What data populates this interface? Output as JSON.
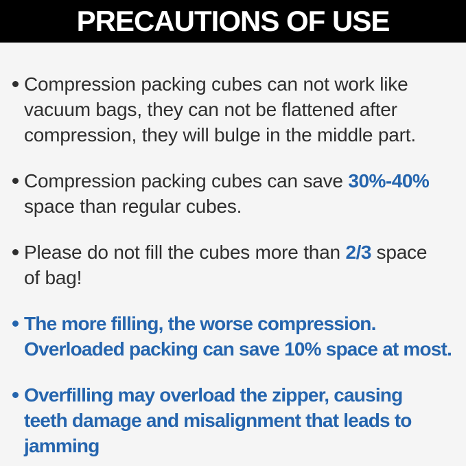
{
  "header": {
    "title": "PRECAUTIONS OF USE"
  },
  "colors": {
    "header_bg": "#000000",
    "header_text": "#ffffff",
    "body_bg": "#f5f5f5",
    "text_dark": "#2e2e2e",
    "accent_blue": "#2565ae"
  },
  "bullets": [
    {
      "style": "dark",
      "lines": [
        {
          "segments": [
            {
              "text": "Compression packing cubes can not work like",
              "highlight": false
            }
          ]
        },
        {
          "segments": [
            {
              "text": "vacuum bags, they can not be flattened after",
              "highlight": false
            }
          ]
        },
        {
          "segments": [
            {
              "text": "compression, they will bulge in the middle part.",
              "highlight": false
            }
          ]
        }
      ]
    },
    {
      "style": "dark",
      "lines": [
        {
          "segments": [
            {
              "text": "Compression packing cubes can save ",
              "highlight": false
            },
            {
              "text": "30%-40%",
              "highlight": true
            }
          ]
        },
        {
          "segments": [
            {
              "text": "space than regular cubes.",
              "highlight": false
            }
          ]
        }
      ]
    },
    {
      "style": "dark",
      "lines": [
        {
          "segments": [
            {
              "text": "Please do not fill the cubes more than ",
              "highlight": false
            },
            {
              "text": "2/3",
              "highlight": true
            },
            {
              "text": " space",
              "highlight": false
            }
          ]
        },
        {
          "segments": [
            {
              "text": "of bag!",
              "highlight": false
            }
          ]
        }
      ]
    },
    {
      "style": "blue",
      "lines": [
        {
          "segments": [
            {
              "text": "The more filling, the worse compression.",
              "highlight": true
            }
          ]
        },
        {
          "segments": [
            {
              "text": "Overloaded packing can save 10% space at most.",
              "highlight": true
            }
          ]
        }
      ]
    },
    {
      "style": "blue",
      "lines": [
        {
          "segments": [
            {
              "text": "Overfilling may overload the zipper, causing",
              "highlight": true
            }
          ]
        },
        {
          "segments": [
            {
              "text": "teeth damage and misalignment that leads to",
              "highlight": true
            }
          ]
        },
        {
          "segments": [
            {
              "text": "jamming",
              "highlight": true
            }
          ]
        }
      ]
    }
  ]
}
